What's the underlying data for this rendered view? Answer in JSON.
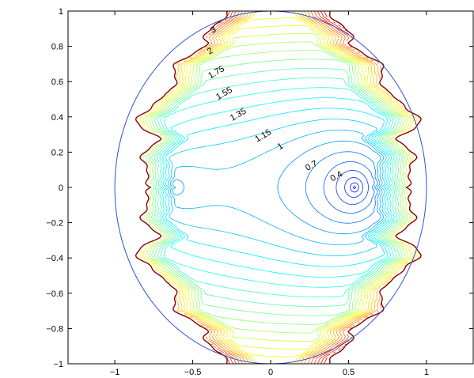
{
  "chart_data": {
    "type": "contour",
    "title": "",
    "xlabel": "",
    "ylabel": "",
    "xlim": [
      -1.3,
      1.3
    ],
    "ylim": [
      -1,
      1
    ],
    "grid": false,
    "colormap": "jet",
    "xticks": [
      {
        "value": -1,
        "label": "−1"
      },
      {
        "value": -0.5,
        "label": "−0.5"
      },
      {
        "value": 0,
        "label": "0"
      },
      {
        "value": 0.5,
        "label": "0.5"
      },
      {
        "value": 1,
        "label": "1"
      }
    ],
    "yticks": [
      {
        "value": 1,
        "label": "1"
      },
      {
        "value": 0.8,
        "label": "0.8"
      },
      {
        "value": 0.6,
        "label": "0.6"
      },
      {
        "value": 0.4,
        "label": "0.4"
      },
      {
        "value": 0.2,
        "label": "0.2"
      },
      {
        "value": 0,
        "label": "0"
      },
      {
        "value": -0.2,
        "label": "−0.2"
      },
      {
        "value": -0.4,
        "label": "−0.4"
      },
      {
        "value": -0.6,
        "label": "−0.6"
      },
      {
        "value": -0.8,
        "label": "−0.8"
      },
      {
        "value": -1,
        "label": "−1"
      }
    ],
    "unit_circle": {
      "cx": 0,
      "cy": 0,
      "r": 1,
      "color": "#3050d8"
    },
    "contour_labels": [
      {
        "text": "3",
        "x": -0.36,
        "y": 0.88
      },
      {
        "text": "2",
        "x": -0.38,
        "y": 0.76
      },
      {
        "text": "1.75",
        "x": -0.34,
        "y": 0.64
      },
      {
        "text": "1.55",
        "x": -0.29,
        "y": 0.52
      },
      {
        "text": "1.35",
        "x": -0.2,
        "y": 0.4
      },
      {
        "text": "1.15",
        "x": -0.04,
        "y": 0.28
      },
      {
        "text": "1",
        "x": 0.07,
        "y": 0.22
      },
      {
        "text": "0.7",
        "x": 0.27,
        "y": 0.11
      },
      {
        "text": "0.4",
        "x": 0.43,
        "y": 0.05
      }
    ]
  }
}
